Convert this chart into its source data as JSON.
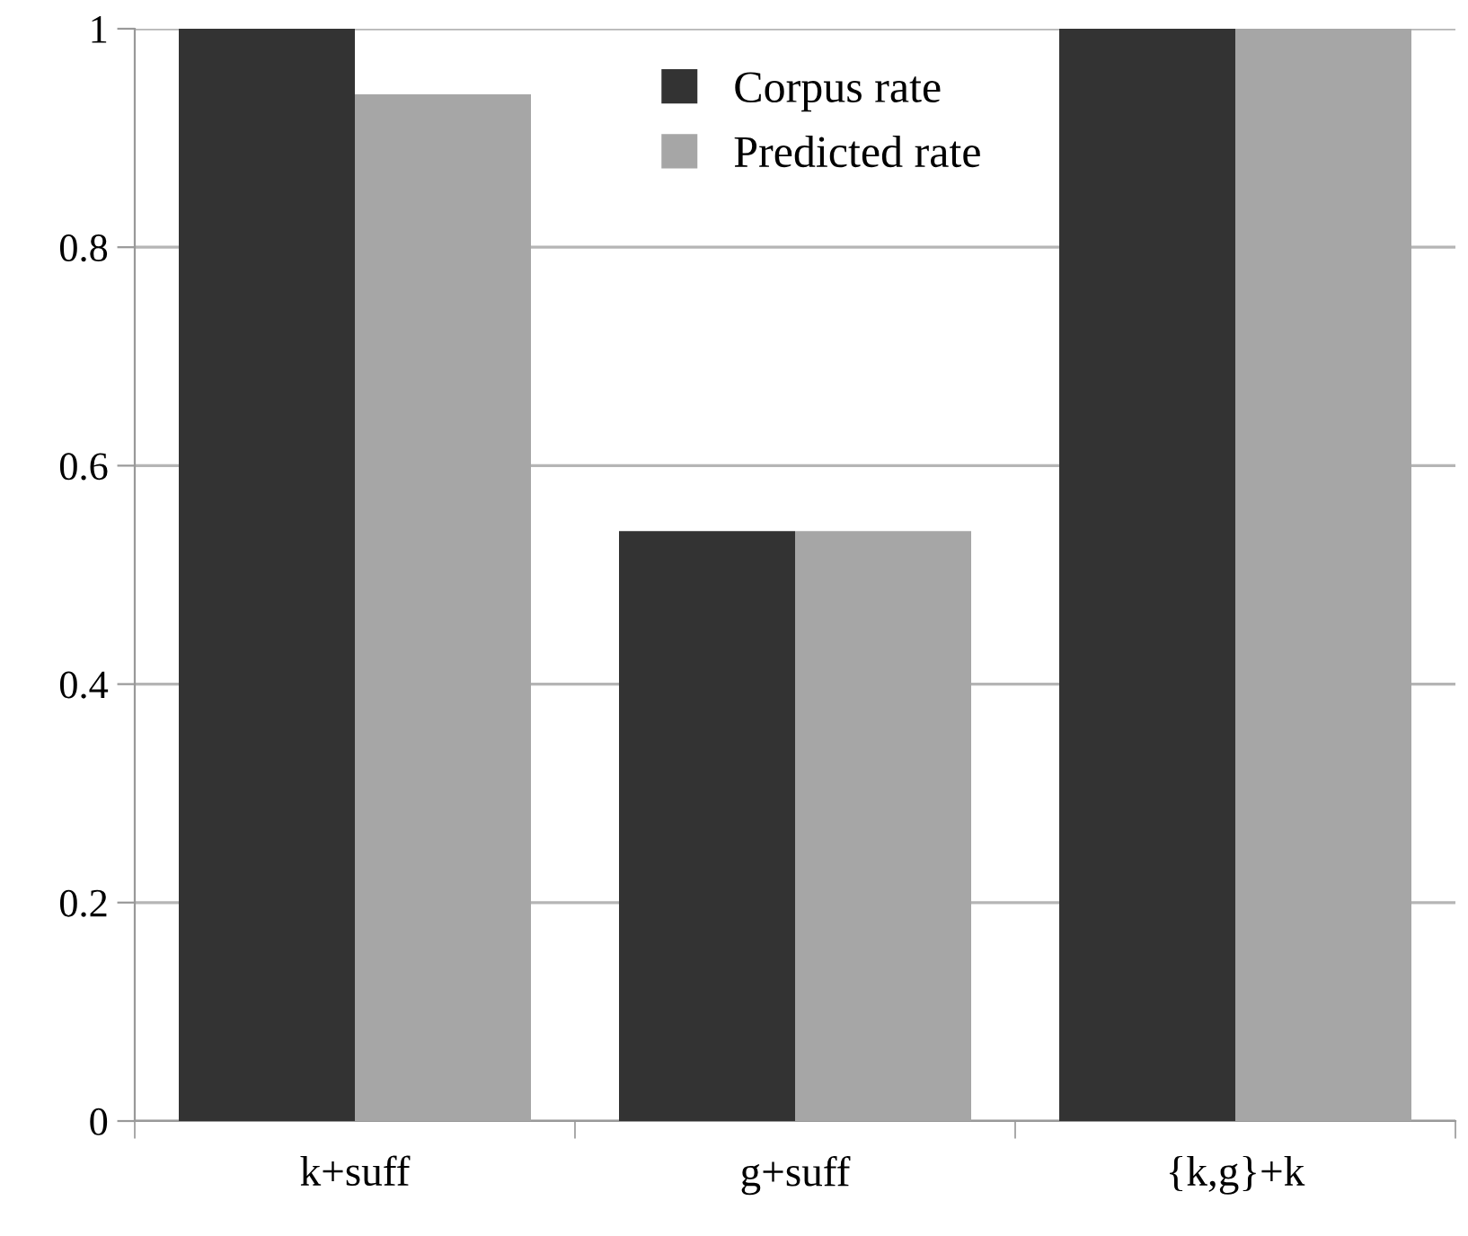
{
  "chart_data": {
    "type": "bar",
    "categories": [
      "k+suff",
      "g+suff",
      "{k,g}+k"
    ],
    "series": [
      {
        "name": "Corpus rate",
        "color": "#333333",
        "values": [
          1.0,
          0.54,
          1.0
        ]
      },
      {
        "name": "Predicted rate",
        "color": "#a6a6a6",
        "values": [
          0.94,
          0.54,
          1.0
        ]
      }
    ],
    "ylim": [
      0,
      1
    ],
    "yticks": [
      0,
      0.2,
      0.4,
      0.6,
      0.8,
      1
    ],
    "grid": "y",
    "legend": "top center"
  }
}
